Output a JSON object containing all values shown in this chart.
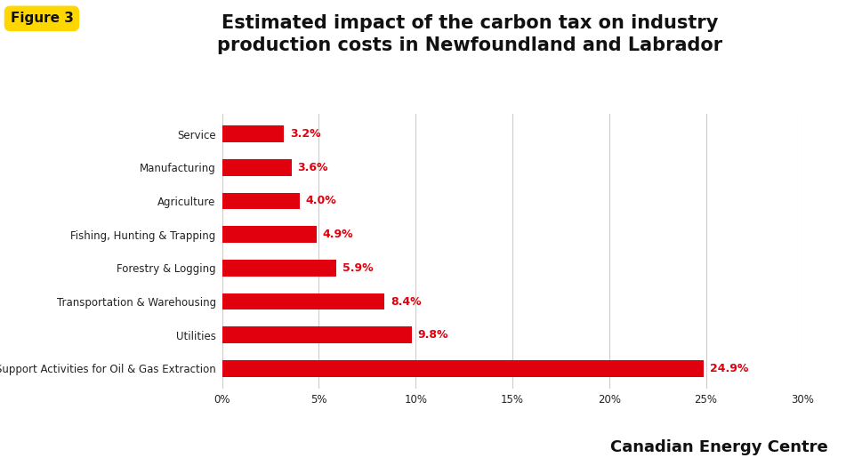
{
  "title": "Estimated impact of the carbon tax on industry\nproduction costs in Newfoundland and Labrador",
  "figure_label": "Figure 3",
  "categories": [
    "Support Activities for Oil & Gas Extraction",
    "Utilities",
    "Transportation & Warehousing",
    "Forestry & Logging",
    "Fishing, Hunting & Trapping",
    "Agriculture",
    "Manufacturing",
    "Service"
  ],
  "values": [
    24.9,
    9.8,
    8.4,
    5.9,
    4.9,
    4.0,
    3.6,
    3.2
  ],
  "bar_color": "#E0000E",
  "label_color": "#E0000E",
  "background_color": "#FFFFFF",
  "title_fontsize": 15,
  "tick_label_fontsize": 8.5,
  "value_label_fontsize": 9,
  "xlim": [
    0,
    30
  ],
  "xticks": [
    0,
    5,
    10,
    15,
    20,
    25,
    30
  ],
  "xtick_labels": [
    "0%",
    "5%",
    "10%",
    "15%",
    "20%",
    "25%",
    "30%"
  ],
  "watermark": "Canadian Energy Centre",
  "watermark_fontsize": 13,
  "figure_label_bg": "#FFD700",
  "figure_label_fontsize": 11,
  "grid_color": "#CCCCCC"
}
